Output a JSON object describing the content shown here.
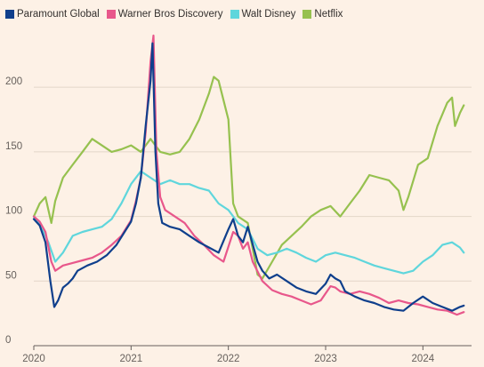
{
  "chart_data": {
    "type": "line",
    "title": "",
    "xlabel": "",
    "ylabel": "",
    "x_ticks": [
      "2020",
      "2021",
      "2022",
      "2023",
      "2024"
    ],
    "y_ticks": [
      0,
      50,
      100,
      150,
      200
    ],
    "xlim": [
      2020.0,
      2024.5
    ],
    "ylim": [
      0,
      240
    ],
    "grid": "horizontal",
    "legend_position": "top-left",
    "series": [
      {
        "name": "Paramount Global",
        "color": "#0f3f8c",
        "points": [
          [
            2020.0,
            98
          ],
          [
            2020.06,
            93
          ],
          [
            2020.12,
            80
          ],
          [
            2020.17,
            50
          ],
          [
            2020.21,
            30
          ],
          [
            2020.25,
            35
          ],
          [
            2020.3,
            45
          ],
          [
            2020.35,
            48
          ],
          [
            2020.4,
            52
          ],
          [
            2020.45,
            58
          ],
          [
            2020.55,
            62
          ],
          [
            2020.65,
            65
          ],
          [
            2020.75,
            70
          ],
          [
            2020.85,
            78
          ],
          [
            2020.95,
            90
          ],
          [
            2021.0,
            96
          ],
          [
            2021.05,
            110
          ],
          [
            2021.1,
            130
          ],
          [
            2021.15,
            170
          ],
          [
            2021.2,
            205
          ],
          [
            2021.22,
            234
          ],
          [
            2021.25,
            150
          ],
          [
            2021.28,
            110
          ],
          [
            2021.32,
            95
          ],
          [
            2021.4,
            92
          ],
          [
            2021.5,
            90
          ],
          [
            2021.6,
            85
          ],
          [
            2021.7,
            80
          ],
          [
            2021.8,
            76
          ],
          [
            2021.9,
            72
          ],
          [
            2022.0,
            90
          ],
          [
            2022.05,
            98
          ],
          [
            2022.1,
            85
          ],
          [
            2022.15,
            80
          ],
          [
            2022.2,
            92
          ],
          [
            2022.3,
            65
          ],
          [
            2022.35,
            58
          ],
          [
            2022.42,
            52
          ],
          [
            2022.5,
            55
          ],
          [
            2022.6,
            50
          ],
          [
            2022.7,
            45
          ],
          [
            2022.8,
            42
          ],
          [
            2022.9,
            40
          ],
          [
            2023.0,
            48
          ],
          [
            2023.05,
            55
          ],
          [
            2023.1,
            52
          ],
          [
            2023.15,
            50
          ],
          [
            2023.2,
            42
          ],
          [
            2023.3,
            38
          ],
          [
            2023.4,
            35
          ],
          [
            2023.5,
            33
          ],
          [
            2023.6,
            30
          ],
          [
            2023.7,
            28
          ],
          [
            2023.8,
            27
          ],
          [
            2023.9,
            33
          ],
          [
            2024.0,
            38
          ],
          [
            2024.1,
            33
          ],
          [
            2024.2,
            30
          ],
          [
            2024.3,
            27
          ],
          [
            2024.38,
            30
          ],
          [
            2024.42,
            31
          ]
        ]
      },
      {
        "name": "Warner Bros Discovery",
        "color": "#e8578b",
        "points": [
          [
            2020.0,
            100
          ],
          [
            2020.06,
            96
          ],
          [
            2020.12,
            88
          ],
          [
            2020.18,
            65
          ],
          [
            2020.22,
            58
          ],
          [
            2020.3,
            62
          ],
          [
            2020.4,
            64
          ],
          [
            2020.5,
            66
          ],
          [
            2020.6,
            68
          ],
          [
            2020.7,
            72
          ],
          [
            2020.8,
            78
          ],
          [
            2020.9,
            85
          ],
          [
            2021.0,
            97
          ],
          [
            2021.05,
            112
          ],
          [
            2021.1,
            130
          ],
          [
            2021.15,
            165
          ],
          [
            2021.2,
            220
          ],
          [
            2021.23,
            240
          ],
          [
            2021.26,
            150
          ],
          [
            2021.3,
            115
          ],
          [
            2021.35,
            105
          ],
          [
            2021.45,
            100
          ],
          [
            2021.55,
            95
          ],
          [
            2021.65,
            85
          ],
          [
            2021.75,
            78
          ],
          [
            2021.85,
            70
          ],
          [
            2021.95,
            65
          ],
          [
            2022.05,
            88
          ],
          [
            2022.1,
            85
          ],
          [
            2022.15,
            75
          ],
          [
            2022.2,
            80
          ],
          [
            2022.25,
            65
          ],
          [
            2022.35,
            50
          ],
          [
            2022.45,
            43
          ],
          [
            2022.55,
            40
          ],
          [
            2022.65,
            38
          ],
          [
            2022.75,
            35
          ],
          [
            2022.85,
            32
          ],
          [
            2022.95,
            35
          ],
          [
            2023.05,
            46
          ],
          [
            2023.1,
            45
          ],
          [
            2023.15,
            42
          ],
          [
            2023.25,
            40
          ],
          [
            2023.35,
            42
          ],
          [
            2023.45,
            40
          ],
          [
            2023.55,
            37
          ],
          [
            2023.65,
            33
          ],
          [
            2023.75,
            35
          ],
          [
            2023.85,
            33
          ],
          [
            2023.95,
            32
          ],
          [
            2024.05,
            30
          ],
          [
            2024.15,
            28
          ],
          [
            2024.25,
            27
          ],
          [
            2024.35,
            24
          ],
          [
            2024.42,
            26
          ]
        ]
      },
      {
        "name": "Walt Disney",
        "color": "#5fd6dc",
        "points": [
          [
            2020.0,
            100
          ],
          [
            2020.08,
            92
          ],
          [
            2020.15,
            80
          ],
          [
            2020.22,
            65
          ],
          [
            2020.3,
            72
          ],
          [
            2020.4,
            85
          ],
          [
            2020.5,
            88
          ],
          [
            2020.6,
            90
          ],
          [
            2020.7,
            92
          ],
          [
            2020.8,
            98
          ],
          [
            2020.9,
            110
          ],
          [
            2021.0,
            125
          ],
          [
            2021.1,
            135
          ],
          [
            2021.2,
            130
          ],
          [
            2021.3,
            125
          ],
          [
            2021.4,
            128
          ],
          [
            2021.5,
            125
          ],
          [
            2021.6,
            125
          ],
          [
            2021.7,
            122
          ],
          [
            2021.8,
            120
          ],
          [
            2021.9,
            110
          ],
          [
            2022.0,
            105
          ],
          [
            2022.1,
            95
          ],
          [
            2022.2,
            90
          ],
          [
            2022.3,
            75
          ],
          [
            2022.4,
            70
          ],
          [
            2022.5,
            72
          ],
          [
            2022.6,
            75
          ],
          [
            2022.7,
            72
          ],
          [
            2022.8,
            68
          ],
          [
            2022.9,
            65
          ],
          [
            2023.0,
            70
          ],
          [
            2023.1,
            72
          ],
          [
            2023.2,
            70
          ],
          [
            2023.3,
            68
          ],
          [
            2023.4,
            65
          ],
          [
            2023.5,
            62
          ],
          [
            2023.6,
            60
          ],
          [
            2023.7,
            58
          ],
          [
            2023.8,
            56
          ],
          [
            2023.9,
            58
          ],
          [
            2024.0,
            65
          ],
          [
            2024.1,
            70
          ],
          [
            2024.2,
            78
          ],
          [
            2024.3,
            80
          ],
          [
            2024.38,
            76
          ],
          [
            2024.42,
            72
          ]
        ]
      },
      {
        "name": "Netflix",
        "color": "#96c14f",
        "points": [
          [
            2020.0,
            100
          ],
          [
            2020.06,
            110
          ],
          [
            2020.12,
            115
          ],
          [
            2020.18,
            95
          ],
          [
            2020.22,
            112
          ],
          [
            2020.3,
            130
          ],
          [
            2020.4,
            140
          ],
          [
            2020.5,
            150
          ],
          [
            2020.6,
            160
          ],
          [
            2020.7,
            155
          ],
          [
            2020.8,
            150
          ],
          [
            2020.9,
            152
          ],
          [
            2021.0,
            155
          ],
          [
            2021.1,
            150
          ],
          [
            2021.2,
            160
          ],
          [
            2021.3,
            150
          ],
          [
            2021.4,
            148
          ],
          [
            2021.5,
            150
          ],
          [
            2021.6,
            160
          ],
          [
            2021.7,
            175
          ],
          [
            2021.8,
            195
          ],
          [
            2021.85,
            208
          ],
          [
            2021.9,
            205
          ],
          [
            2021.95,
            190
          ],
          [
            2022.0,
            175
          ],
          [
            2022.05,
            110
          ],
          [
            2022.1,
            100
          ],
          [
            2022.2,
            95
          ],
          [
            2022.3,
            55
          ],
          [
            2022.35,
            52
          ],
          [
            2022.45,
            65
          ],
          [
            2022.55,
            78
          ],
          [
            2022.65,
            85
          ],
          [
            2022.75,
            92
          ],
          [
            2022.85,
            100
          ],
          [
            2022.95,
            105
          ],
          [
            2023.05,
            108
          ],
          [
            2023.15,
            100
          ],
          [
            2023.25,
            110
          ],
          [
            2023.35,
            120
          ],
          [
            2023.45,
            132
          ],
          [
            2023.55,
            130
          ],
          [
            2023.65,
            128
          ],
          [
            2023.75,
            120
          ],
          [
            2023.8,
            105
          ],
          [
            2023.85,
            115
          ],
          [
            2023.95,
            140
          ],
          [
            2024.05,
            145
          ],
          [
            2024.15,
            170
          ],
          [
            2024.25,
            188
          ],
          [
            2024.3,
            192
          ],
          [
            2024.33,
            170
          ],
          [
            2024.38,
            180
          ],
          [
            2024.42,
            186
          ]
        ]
      }
    ]
  }
}
